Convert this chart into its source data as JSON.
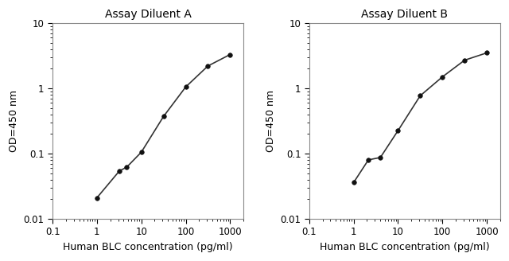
{
  "panel_A": {
    "title": "Assay Diluent A",
    "x": [
      1,
      3.2,
      4.7,
      10,
      31.6,
      100,
      316,
      1000
    ],
    "y": [
      0.021,
      0.054,
      0.062,
      0.105,
      0.37,
      1.05,
      2.2,
      3.3
    ]
  },
  "panel_B": {
    "title": "Assay Diluent B",
    "x": [
      1,
      2.15,
      4.0,
      10,
      31.6,
      100,
      316,
      1000
    ],
    "y": [
      0.036,
      0.08,
      0.087,
      0.225,
      0.77,
      1.5,
      2.7,
      3.5
    ]
  },
  "xlabel": "Human BLC concentration (pg/ml)",
  "ylabel": "OD=450 nm",
  "xlim": [
    0.3,
    2000
  ],
  "ylim": [
    0.01,
    10
  ],
  "xtick_vals": [
    0.1,
    1,
    10,
    100,
    1000
  ],
  "xtick_labels": [
    "0.1",
    "1",
    "10",
    "100",
    "1000"
  ],
  "ytick_vals": [
    0.01,
    0.1,
    1,
    10
  ],
  "ytick_labels": [
    "0.01",
    "0.1",
    "1",
    "10"
  ],
  "line_color": "#333333",
  "marker": "o",
  "marker_color": "#111111",
  "marker_size": 4,
  "bg_color": "#ffffff",
  "title_fontsize": 10,
  "label_fontsize": 9,
  "tick_fontsize": 8.5
}
